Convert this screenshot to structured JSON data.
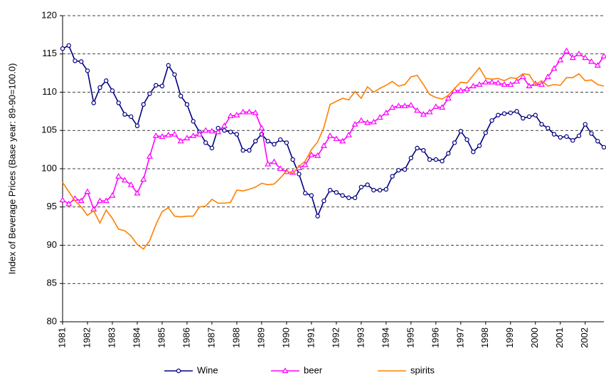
{
  "chart_data": {
    "type": "line",
    "y_label": "Index of Beverage Prices (Base year: 89-90=100.0)",
    "categories": [
      "1981",
      null,
      null,
      null,
      "1982",
      null,
      null,
      null,
      "1983",
      null,
      null,
      null,
      "1984",
      null,
      null,
      null,
      "1985",
      null,
      null,
      null,
      "1986",
      null,
      null,
      null,
      "1987",
      null,
      null,
      null,
      "1988",
      null,
      null,
      null,
      "1989",
      null,
      null,
      null,
      "1990",
      null,
      null,
      null,
      "1991",
      null,
      null,
      null,
      "1992",
      null,
      null,
      null,
      "1993",
      null,
      null,
      null,
      "1994",
      null,
      null,
      null,
      "1995",
      null,
      null,
      null,
      "1996",
      null,
      null,
      null,
      "1997",
      null,
      null,
      null,
      "1998",
      null,
      null,
      null,
      "1999",
      null,
      null,
      null,
      "2000",
      null,
      null,
      null,
      "2001",
      null,
      null,
      null,
      "2002",
      null,
      null,
      null
    ],
    "series": [
      {
        "name": "Wine",
        "color": "#000080",
        "marker": "circle",
        "values": [
          115.7,
          116.1,
          114.1,
          114.0,
          112.8,
          108.6,
          110.6,
          111.5,
          110.2,
          108.6,
          107.1,
          106.8,
          105.6,
          108.4,
          109.8,
          110.9,
          110.8,
          113.5,
          112.3,
          109.5,
          108.4,
          106.2,
          104.8,
          103.4,
          102.7,
          105.3,
          105.0,
          104.8,
          104.5,
          102.4,
          102.4,
          103.6,
          104.5,
          103.6,
          103.2,
          103.8,
          103.4,
          101.2,
          99.3,
          96.8,
          96.5,
          93.8,
          95.8,
          97.2,
          96.9,
          96.5,
          96.2,
          96.2,
          97.6,
          97.9,
          97.2,
          97.2,
          97.3,
          99.0,
          99.8,
          99.9,
          101.4,
          102.7,
          102.4,
          101.2,
          101.2,
          101.0,
          102.0,
          103.4,
          104.9,
          103.8,
          102.2,
          103.0,
          104.7,
          106.3,
          107.0,
          107.2,
          107.3,
          107.5,
          106.6,
          106.8,
          107.0,
          105.8,
          105.3,
          104.5,
          104.1,
          104.2,
          103.7,
          104.3,
          105.8,
          104.6,
          103.6,
          102.8
        ]
      },
      {
        "name": "beer",
        "color": "#ff00ff",
        "marker": "triangle",
        "values": [
          95.9,
          95.4,
          96.1,
          95.8,
          97.0,
          94.7,
          95.8,
          95.8,
          96.5,
          99.0,
          98.5,
          97.9,
          96.8,
          98.6,
          101.6,
          104.3,
          104.2,
          104.4,
          104.5,
          103.6,
          104.0,
          104.3,
          104.5,
          105.0,
          104.9,
          104.8,
          105.6,
          106.9,
          107.0,
          107.4,
          107.4,
          107.3,
          105.3,
          100.6,
          100.9,
          100.0,
          99.6,
          99.5,
          100.1,
          100.5,
          101.8,
          101.7,
          103.0,
          104.3,
          103.9,
          103.6,
          104.4,
          105.8,
          106.3,
          106.0,
          106.1,
          106.7,
          107.3,
          108.0,
          108.2,
          108.2,
          108.3,
          107.6,
          107.1,
          107.4,
          108.1,
          108.0,
          109.2,
          110.2,
          110.2,
          110.4,
          110.8,
          111.0,
          111.3,
          111.3,
          111.2,
          111.0,
          111.0,
          111.4,
          112.0,
          110.8,
          111.1,
          111.0,
          112.0,
          113.1,
          114.2,
          115.4,
          114.5,
          115.0,
          114.5,
          114.0,
          113.5,
          114.7
        ]
      },
      {
        "name": "spirits",
        "color": "#ff8000",
        "marker": "none",
        "values": [
          98.2,
          97.0,
          95.8,
          95.0,
          93.9,
          94.5,
          92.9,
          94.6,
          93.5,
          92.1,
          91.9,
          91.2,
          90.1,
          89.5,
          90.6,
          92.7,
          94.4,
          94.9,
          93.8,
          93.7,
          93.8,
          93.8,
          95.0,
          95.1,
          96.0,
          95.5,
          95.5,
          95.6,
          97.2,
          97.1,
          97.3,
          97.6,
          98.1,
          97.9,
          98.0,
          98.8,
          99.7,
          99.4,
          100.3,
          101.0,
          102.5,
          103.5,
          105.4,
          108.4,
          108.8,
          109.2,
          109.0,
          110.1,
          109.2,
          110.7,
          110.0,
          110.5,
          110.9,
          111.4,
          110.8,
          111.0,
          112.0,
          112.2,
          111.0,
          109.7,
          109.3,
          109.1,
          109.6,
          110.5,
          111.3,
          111.2,
          112.2,
          113.2,
          111.8,
          111.7,
          111.8,
          111.5,
          111.9,
          111.8,
          112.4,
          112.3,
          111.0,
          111.5,
          110.8,
          111.0,
          110.9,
          111.9,
          111.9,
          112.4,
          111.5,
          111.6,
          111.0,
          110.8
        ]
      }
    ],
    "ylim": [
      80,
      120
    ],
    "yticks": [
      80,
      85,
      90,
      95,
      100,
      105,
      110,
      115,
      120
    ],
    "grid": true,
    "legend": "bottom"
  }
}
